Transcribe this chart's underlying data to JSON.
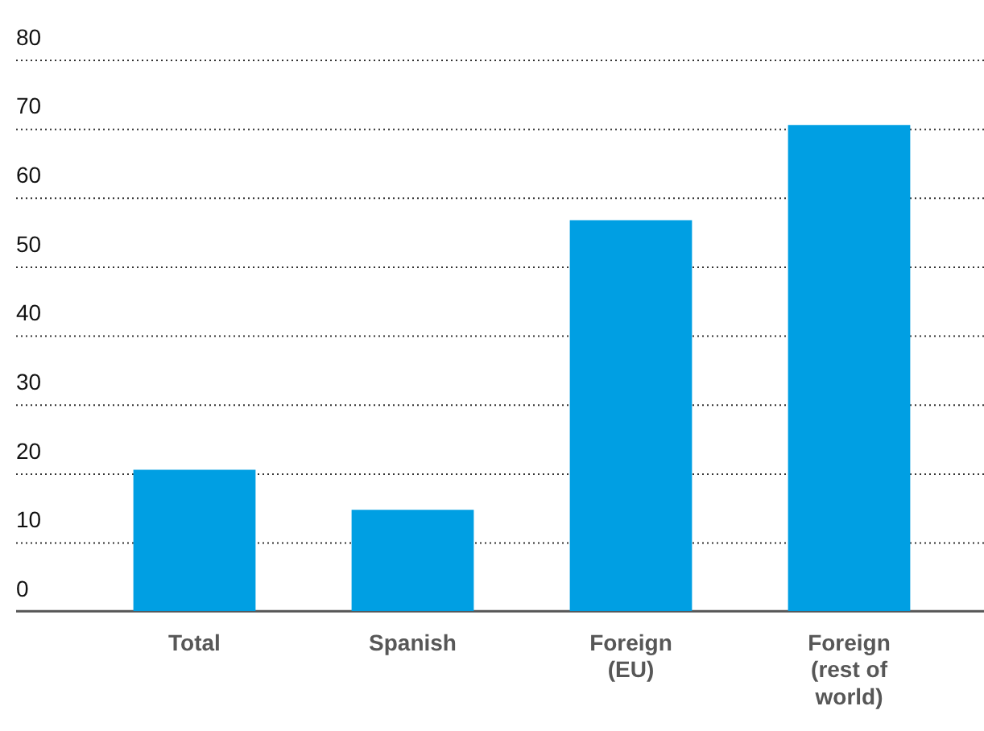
{
  "chart_data": {
    "type": "bar",
    "categories": [
      "Total",
      "Spanish",
      "Foreign (EU)",
      "Foreign (rest of world)"
    ],
    "values": [
      20.5,
      14.7,
      56.7,
      70.5
    ],
    "color": "#009fe3",
    "ylim": [
      0,
      80
    ],
    "yticks": [
      0,
      10,
      20,
      30,
      40,
      50,
      60,
      70,
      80
    ],
    "grid": "y",
    "legend": false
  }
}
